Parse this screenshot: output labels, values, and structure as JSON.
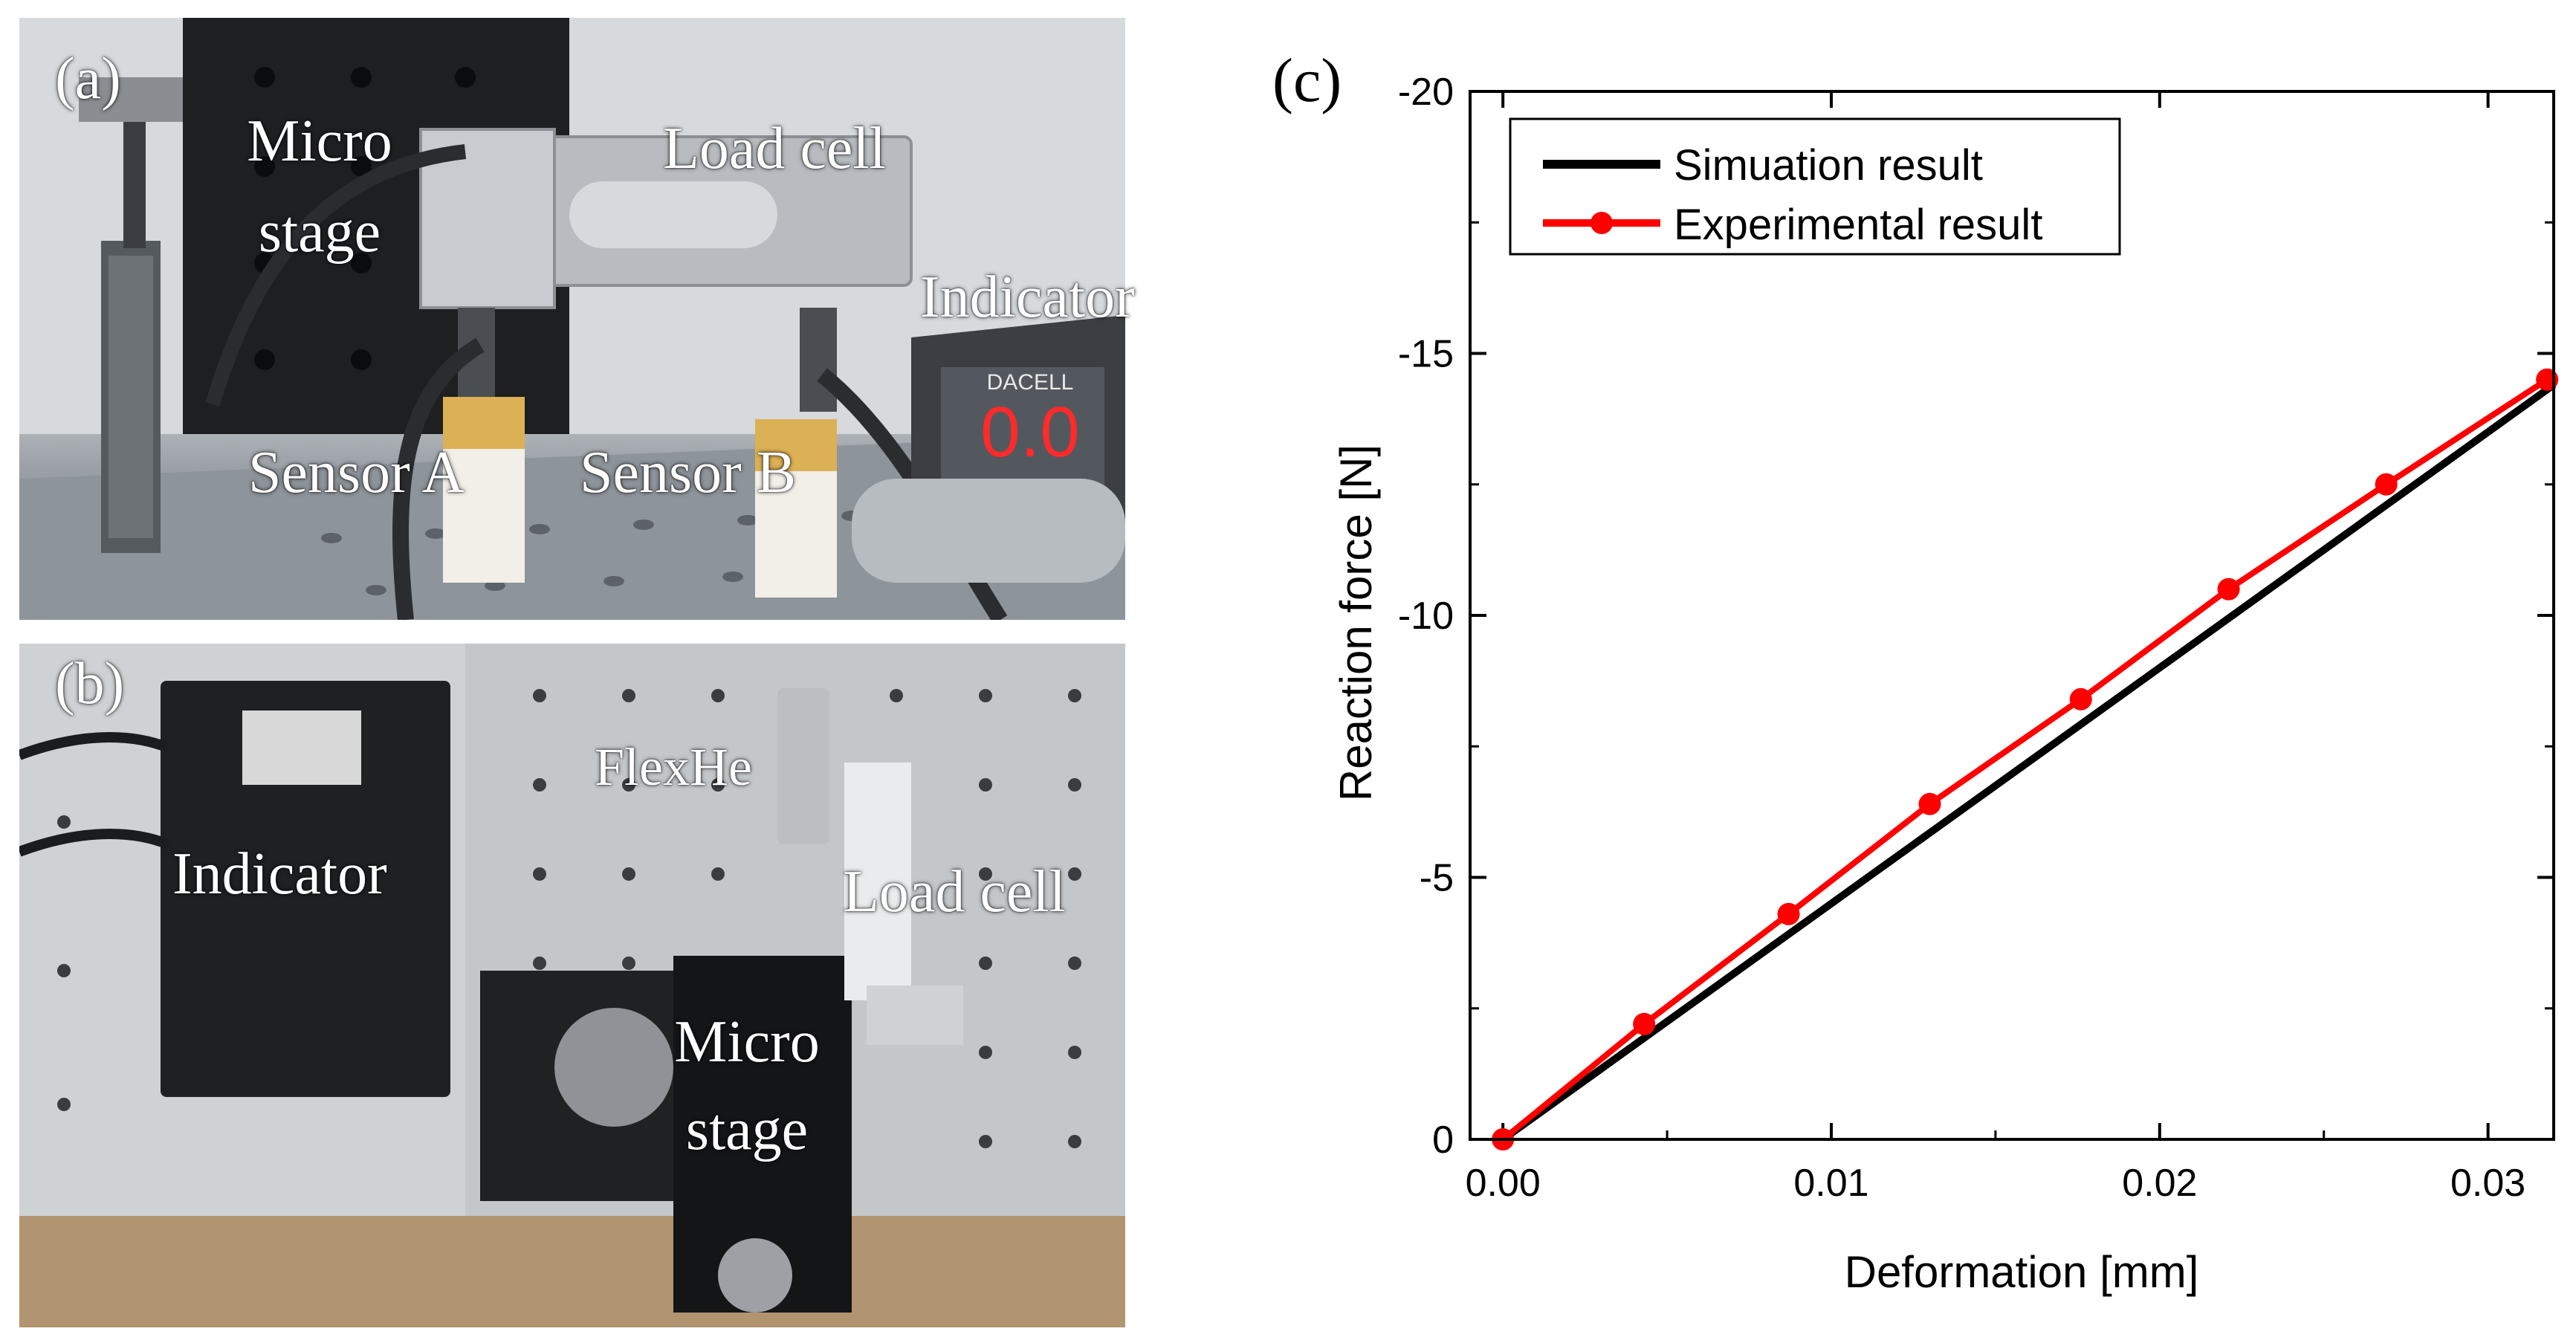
{
  "panel_a": {
    "label": "(a)",
    "labels": {
      "micro": "Micro",
      "stage": "stage",
      "load_cell": "Load cell",
      "indicator": "Indicator",
      "sensor_a": "Sensor A",
      "sensor_b": "Sensor B",
      "display_value": "0.0",
      "brand": "DACELL"
    }
  },
  "panel_b": {
    "label": "(b)",
    "labels": {
      "indicator": "Indicator",
      "flexhe": "FlexHe",
      "load_cell": "Load cell",
      "micro": "Micro",
      "stage": "stage"
    }
  },
  "panel_c": {
    "label": "(c)"
  },
  "colors": {
    "simulation": "#000000",
    "experimental": "#ff0000",
    "axis": "#000000"
  },
  "chart_data": {
    "type": "line",
    "title": "",
    "xlabel": "Deformation [mm]",
    "ylabel": "Reaction force [N]",
    "xlim": [
      -0.001,
      0.032
    ],
    "ylim": [
      0,
      -20
    ],
    "x_ticks": [
      0.0,
      0.01,
      0.02,
      0.03
    ],
    "x_tick_labels": [
      "0.00",
      "0.01",
      "0.02",
      "0.03"
    ],
    "y_ticks": [
      0,
      -5,
      -10,
      -15,
      -20
    ],
    "y_tick_labels": [
      "0",
      "-5",
      "-10",
      "-15",
      "-20"
    ],
    "legend_position": "top-left",
    "series": [
      {
        "name": "Simuation result",
        "marker": "none",
        "x": [
          0.0,
          0.032
        ],
        "y": [
          0.0,
          -14.4
        ]
      },
      {
        "name": "Experimental result",
        "marker": "circle",
        "x": [
          0.0,
          0.0043,
          0.0087,
          0.013,
          0.0176,
          0.0221,
          0.0269,
          0.0318
        ],
        "y": [
          0.0,
          -2.2,
          -4.3,
          -6.4,
          -8.4,
          -10.5,
          -12.5,
          -14.5
        ]
      }
    ]
  }
}
